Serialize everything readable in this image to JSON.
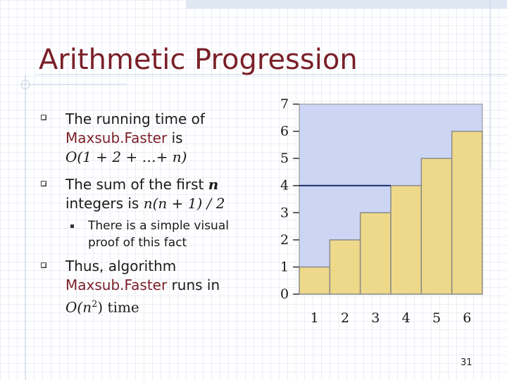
{
  "slide": {
    "title": "Arithmetic Progression",
    "page_number": "31"
  },
  "bullets": [
    {
      "line1": "The running time of",
      "line2": "Maxsub.Faster",
      "line2b": " is",
      "line3": "O(1 + 2 + …+ n)"
    },
    {
      "line1a": "The sum of the first ",
      "line1b": "n",
      "line2a": "integers is ",
      "line2b": "n(n + 1) / 2"
    },
    {
      "sub": true,
      "line1": "There is a simple visual",
      "line2": "proof of this fact"
    },
    {
      "line1": "Thus, algorithm",
      "line2": "Maxsub.Faster",
      "line2b": " runs in",
      "line3a": "O(n",
      "line3sup": "2",
      "line3b": ") time"
    }
  ],
  "chart_data": {
    "type": "bar",
    "categories": [
      "1",
      "2",
      "3",
      "4",
      "5",
      "6"
    ],
    "values": [
      1,
      2,
      3,
      4,
      5,
      6
    ],
    "xlabel": "",
    "ylabel": "",
    "ylim": [
      0,
      7
    ],
    "y_ticks": [
      "0",
      "1",
      "2",
      "3",
      "4",
      "5",
      "6",
      "7"
    ],
    "x_ticks": [
      "1",
      "2",
      "3",
      "4",
      "5",
      "6"
    ],
    "highlight_line_y": 4,
    "colors": {
      "bar": "#eed88a",
      "bar_stroke": "#8a8a8a",
      "background": "#ccd6f4",
      "axis": "#333333",
      "highlight_line": "#1a2a66"
    }
  }
}
